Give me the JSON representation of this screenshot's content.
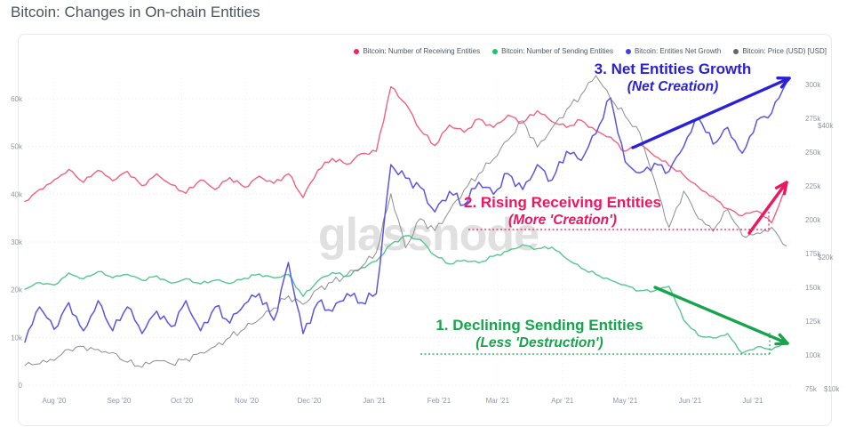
{
  "page": {
    "title": "Bitcoin: Changes in On-chain Entities"
  },
  "watermark": "glassnode",
  "legend": {
    "items": [
      {
        "label": "Bitcoin: Number of Receiving Entities",
        "color": "#f0245f"
      },
      {
        "label": "Bitcoin: Number of Sending Entities",
        "color": "#17c671"
      },
      {
        "label": "Bitcoin: Entities Net Growth",
        "color": "#4340e0"
      },
      {
        "label": "Bitcoin: Price (USD) [USD]",
        "color": "#63676c"
      }
    ]
  },
  "annotations": {
    "net_growth": {
      "line1": "3. Net Entities Growth",
      "line2": "(Net Creation)",
      "color": "#2a21d6"
    },
    "receiving": {
      "line1": "2. Rising Receiving Entities",
      "line2": "(More 'Creation')",
      "color": "#ef155f"
    },
    "sending": {
      "line1": "1. Declining Sending Entities",
      "line2": "(Less 'Destruction')",
      "color": "#17a44c"
    }
  },
  "chart_data": {
    "type": "line",
    "title": "Bitcoin: Changes in On-chain Entities",
    "sampling": "weekly samples, left to right across the visible date range",
    "x_ticks": [
      "Aug '20",
      "Sep '20",
      "Oct '20",
      "Nov '20",
      "Dec '20",
      "Jan '21",
      "Feb '21",
      "Mar '21",
      "Apr '21",
      "May '21",
      "Jun '21",
      "Jul '21"
    ],
    "x_tick_day_offsets": [
      14,
      45,
      75,
      106,
      136,
      167,
      198,
      226,
      257,
      287,
      318,
      348
    ],
    "axes": {
      "left_entities": {
        "tick_labels": [
          "60k",
          "50k",
          "40k",
          "30k",
          "20k",
          "10k",
          "0"
        ],
        "tick_values": [
          60,
          50,
          40,
          30,
          20,
          10,
          0
        ],
        "unit": "entities (thousands)"
      },
      "right_entities": {
        "tick_labels": [
          "300k",
          "275k",
          "250k",
          "225k",
          "200k",
          "175k",
          "150k",
          "125k",
          "100k",
          "75k"
        ],
        "tick_values": [
          300,
          275,
          250,
          225,
          200,
          175,
          150,
          125,
          100,
          75
        ],
        "unit": "entities (thousands)"
      },
      "right_price": {
        "tick_labels": [
          "$40k",
          "$20k",
          "$10k"
        ],
        "tick_values": [
          40,
          20,
          10
        ],
        "scale": "log",
        "unit": "USD (thousands)"
      },
      "grid": "dotted horizontal at left ticks, faint dotted vertical at month ticks"
    },
    "series": [
      {
        "name": "Bitcoin: Number of Receiving Entities",
        "color": "#f2607f",
        "axis": "left_entities",
        "unit": "k entities",
        "values": [
          38.5,
          41,
          43,
          45.2,
          42.5,
          45,
          42.8,
          44.8,
          41.8,
          44.3,
          42,
          40.2,
          43,
          41,
          43.5,
          41.5,
          43.8,
          42.3,
          44.3,
          39.3,
          45,
          47.5,
          46.3,
          48.5,
          49,
          62.5,
          59,
          53.5,
          50.2,
          54.5,
          53,
          55.8,
          54,
          56.6,
          55,
          57.5,
          55.2,
          54,
          55.5,
          53.3,
          52,
          49,
          50.5,
          48,
          46,
          44,
          41.5,
          39.5,
          37,
          35.5,
          36.5,
          34,
          41.3
        ]
      },
      {
        "name": "Bitcoin: Number of Sending Entities",
        "color": "#57c690",
        "axis": "left_entities",
        "unit": "k entities",
        "values": [
          20.1,
          21.5,
          21,
          23.5,
          22.3,
          23.8,
          22.5,
          23.2,
          22,
          22.9,
          21.4,
          22.3,
          21.2,
          22,
          21.3,
          22.4,
          23.3,
          22.5,
          23.2,
          18.6,
          21.8,
          23.6,
          22.8,
          24.6,
          26,
          29.5,
          31.3,
          30.5,
          27.2,
          25.4,
          26.2,
          25.6,
          27,
          28.1,
          29.4,
          28.6,
          28.9,
          26.5,
          24.5,
          23.2,
          22,
          21,
          19.8,
          19.8,
          20.7,
          13.6,
          10.4,
          9.9,
          10.8,
          6.7,
          8,
          7.4,
          8.8
        ]
      },
      {
        "name": "Bitcoin: Entities Net Growth",
        "color": "#5b55e0",
        "axis": "left_entities",
        "unit": "k entities",
        "values": [
          9,
          16.4,
          11.7,
          17.3,
          11.4,
          17.7,
          11.4,
          16.4,
          10.8,
          15.5,
          12.3,
          17.7,
          11.4,
          16.4,
          13,
          17,
          19.2,
          13.6,
          25.7,
          10.8,
          17.3,
          15.5,
          19.2,
          17.3,
          19.2,
          46.2,
          43.4,
          41.5,
          36.3,
          40.6,
          37.8,
          42.5,
          40,
          44.3,
          41,
          46.2,
          43,
          49,
          47.1,
          52.7,
          60.2,
          46.8,
          44.5,
          46.5,
          44.8,
          50,
          56,
          50.5,
          54,
          48.6,
          55.5,
          57,
          63.3
        ]
      },
      {
        "name": "Bitcoin: Price (USD)",
        "color": "#8b8e91",
        "axis": "right_price",
        "unit": "USD thousands",
        "values": [
          11.3,
          11.4,
          11.6,
          12.3,
          12.5,
          12.3,
          12.1,
          11.5,
          11.2,
          11.6,
          11.4,
          11.7,
          12.1,
          12.5,
          13.1,
          13.7,
          14.4,
          15.3,
          16.3,
          15.6,
          16.9,
          17.5,
          18.2,
          19,
          20.5,
          27.9,
          21,
          24.5,
          23,
          25.5,
          28.5,
          31,
          33.5,
          37,
          41,
          35.7,
          39.5,
          43.5,
          47,
          52,
          46,
          42,
          38.5,
          30,
          23.4,
          28.3,
          24.5,
          22.9,
          25.7,
          22.4,
          22.7,
          23.4,
          21.2
        ]
      }
    ]
  }
}
